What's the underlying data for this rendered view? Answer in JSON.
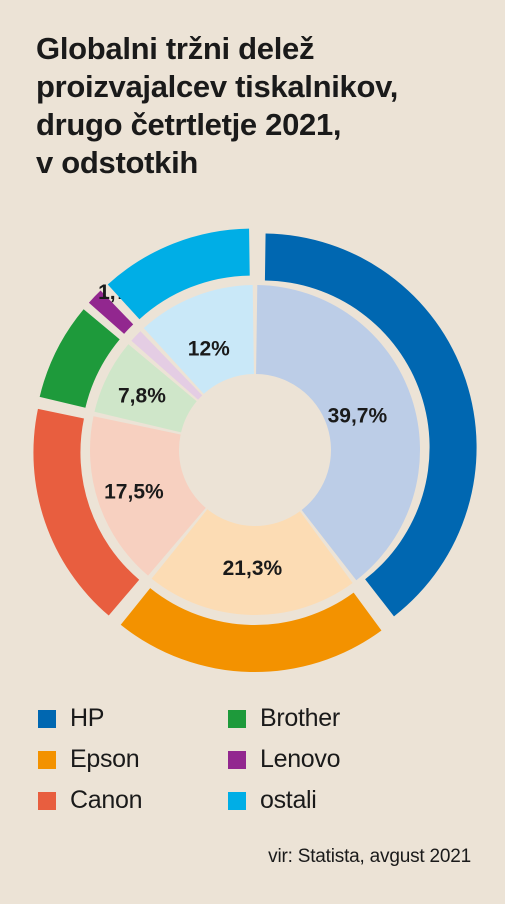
{
  "title_lines": [
    "Globalni tržni delež",
    "proizvajalcev tiskalnikov,",
    "drugo četrtletje 2021,",
    "v odstotkih"
  ],
  "chart_data": {
    "type": "pie",
    "style": "double-ring donut, outer ring saturated, inner ring light tint, outer segments exploded",
    "title": "Globalni tržni delež proizvajalcev tiskalnikov, drugo četrtletje 2021, v odstotkih",
    "categories": [
      "HP",
      "Epson",
      "Canon",
      "Brother",
      "Lenovo",
      "ostali"
    ],
    "values": [
      39.7,
      21.3,
      17.5,
      7.8,
      1.7,
      12
    ],
    "labels": [
      "39,7%",
      "21,3%",
      "17,5%",
      "7,8%",
      "1,7%",
      "12%"
    ],
    "colors": [
      "#0067b1",
      "#f39200",
      "#e85e3f",
      "#1e9a3b",
      "#92278f",
      "#00aee6"
    ],
    "inner_colors": [
      "#bccde7",
      "#fcdcb4",
      "#f7d0c0",
      "#cfe6c9",
      "#e4cde4",
      "#c9e8f8"
    ],
    "legend_placement": "bottom"
  },
  "legend": [
    {
      "label": "HP",
      "color": "#0067b1"
    },
    {
      "label": "Brother",
      "color": "#1e9a3b"
    },
    {
      "label": "Epson",
      "color": "#f39200"
    },
    {
      "label": "Lenovo",
      "color": "#92278f"
    },
    {
      "label": "Canon",
      "color": "#e85e3f"
    },
    {
      "label": "ostali",
      "color": "#00aee6"
    }
  ],
  "source": "vir: Statista, avgust 2021"
}
